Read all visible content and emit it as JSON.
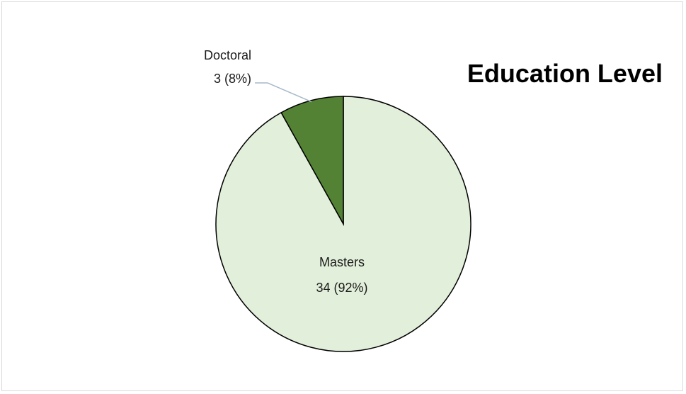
{
  "chart_data": {
    "type": "pie",
    "title": "Education Level",
    "slices": [
      {
        "label": "Masters",
        "value": 34,
        "percent": "92%",
        "color": "#e2efda",
        "display": "34 (92%)"
      },
      {
        "label": "Doctoral",
        "value": 3,
        "percent": "8%",
        "color": "#548235",
        "display": "3 (8%)"
      }
    ],
    "start_angle": "12 o'clock",
    "direction": "counter-clockwise for Doctoral slice, Masters fills remainder",
    "slice_border_color": "#000000",
    "leader_line_color": "#a6b9c9"
  }
}
